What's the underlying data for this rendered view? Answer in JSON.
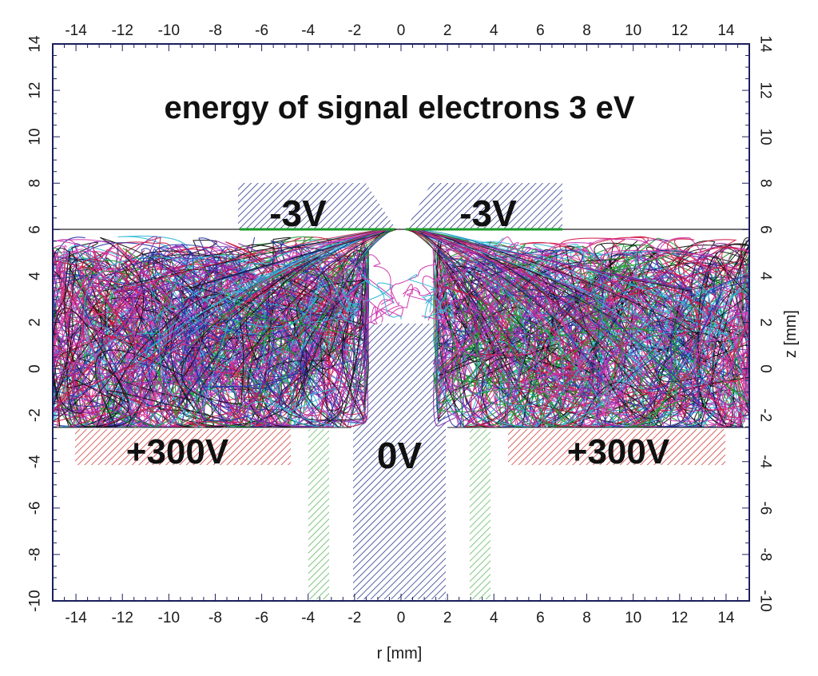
{
  "figure": {
    "title": "energy of signal electrons 3 eV",
    "x_axis_label": "r [mm]",
    "y_axis_label": "z [mm]",
    "x_range": [
      -15,
      15
    ],
    "y_range": [
      -10,
      14
    ],
    "x_ticks": [
      -14,
      -12,
      -10,
      -8,
      -6,
      -4,
      -2,
      0,
      2,
      4,
      6,
      8,
      10,
      12,
      14
    ],
    "y_ticks": [
      -10,
      -8,
      -6,
      -4,
      -2,
      0,
      2,
      4,
      6,
      8,
      10,
      12,
      14
    ],
    "x_tick_labels": [
      "-14",
      "-12",
      "-10",
      "-8",
      "-6",
      "-4",
      "-2",
      "0",
      "2",
      "4",
      "6",
      "8",
      "10",
      "12",
      "14"
    ],
    "y_tick_labels": [
      "-10",
      "-8",
      "-6",
      "-4",
      "-2",
      "0",
      "2",
      "4",
      "6",
      "8",
      "10",
      "12",
      "14"
    ]
  },
  "electrodes": {
    "top_left_label": "-3V",
    "top_right_label": "-3V",
    "center_label": "0V",
    "bottom_left_label": "+300V",
    "bottom_right_label": "+300V"
  },
  "colors": {
    "negative_electrode": "#2a3a8c",
    "positive_electrode": "#d03a3a",
    "grounded_plate": "#5fb85f",
    "frame": "#1b1f5c",
    "trajectory_palette": [
      "#d01848",
      "#2333a8",
      "#1a9a2a",
      "#30b8d8",
      "#111111",
      "#8a2ab0",
      "#d03ab0"
    ]
  }
}
